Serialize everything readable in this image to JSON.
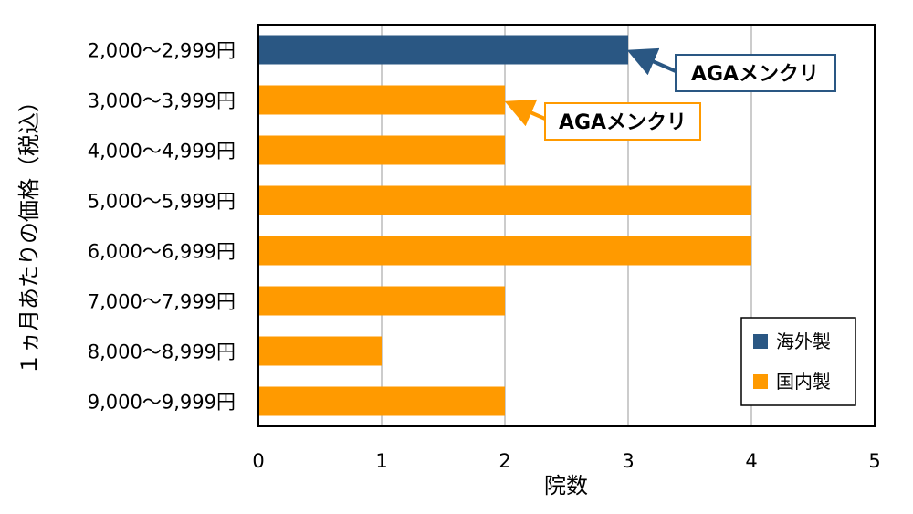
{
  "chart_data": {
    "type": "bar",
    "orientation": "horizontal",
    "categories": [
      "2,000～2,999円",
      "3,000～3,999円",
      "4,000～4,999円",
      "5,000～5,999円",
      "6,000～6,999円",
      "7,000～7,999円",
      "8,000～8,999円",
      "9,000～9,999円"
    ],
    "series": [
      {
        "name": "海外製",
        "color": "#2a5783",
        "values": [
          3,
          0,
          0,
          0,
          0,
          0,
          0,
          0
        ]
      },
      {
        "name": "国内製",
        "color": "#ff9a00",
        "values": [
          0,
          2,
          2,
          4,
          4,
          2,
          1,
          2
        ]
      }
    ],
    "xlabel": "院数",
    "ylabel": "１ヵ月あたりの価格（税込）",
    "xlim": [
      0,
      5
    ],
    "xticks": [
      0,
      1,
      2,
      3,
      4,
      5
    ],
    "grid": "vertical",
    "legend": "bottom-right",
    "annotations": [
      {
        "text": "AGAメンクリ",
        "category_index": 0,
        "series": "海外製"
      },
      {
        "text": "AGAメンクリ",
        "category_index": 1,
        "series": "国内製"
      }
    ]
  }
}
